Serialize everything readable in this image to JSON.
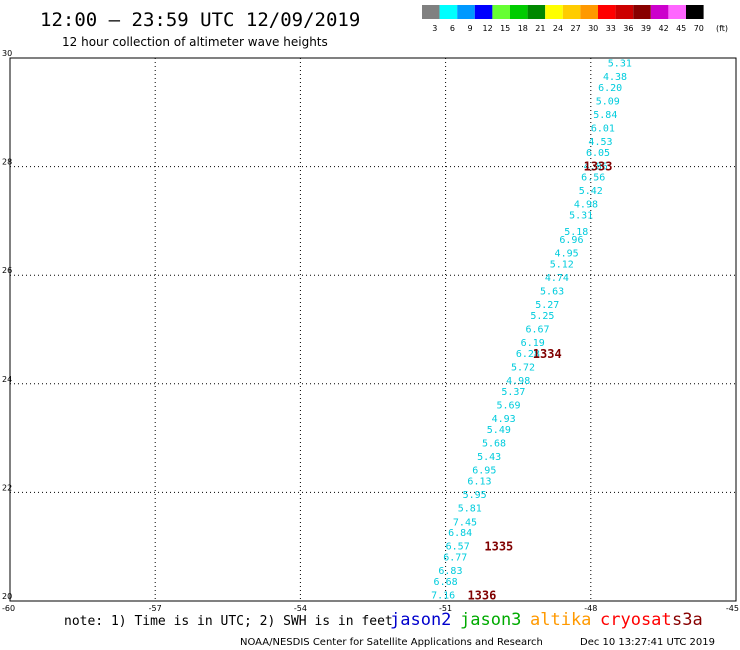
{
  "header": {
    "title": "12:00 – 23:59 UTC 12/09/2019",
    "subtitle": "12 hour collection of altimeter wave heights"
  },
  "scale": {
    "unit": "(ft)",
    "bins": [
      {
        "label": "3",
        "color": "#808080"
      },
      {
        "label": "6",
        "color": "#00ffff"
      },
      {
        "label": "9",
        "color": "#0099ff"
      },
      {
        "label": "12",
        "color": "#0000ff"
      },
      {
        "label": "15",
        "color": "#66ff33"
      },
      {
        "label": "18",
        "color": "#00cc00"
      },
      {
        "label": "21",
        "color": "#008800"
      },
      {
        "label": "24",
        "color": "#ffff00"
      },
      {
        "label": "27",
        "color": "#ffcc00"
      },
      {
        "label": "30",
        "color": "#ff9900"
      },
      {
        "label": "33",
        "color": "#ff0000"
      },
      {
        "label": "36",
        "color": "#cc0000"
      },
      {
        "label": "39",
        "color": "#880000"
      },
      {
        "label": "42",
        "color": "#cc00cc"
      },
      {
        "label": "45",
        "color": "#ff66ff"
      },
      {
        "label": "70",
        "color": "#000000"
      }
    ]
  },
  "chart_data": {
    "type": "scatter",
    "title": "12:00 – 23:59 UTC 12/09/2019",
    "subtitle": "12 hour collection of altimeter wave heights",
    "xlim": [
      -60,
      -45
    ],
    "ylim": [
      20,
      30
    ],
    "x_ticks": [
      "-60",
      "-57",
      "-54",
      "-51",
      "-48",
      "-45"
    ],
    "y_ticks": [
      "20",
      "22",
      "24",
      "26",
      "28",
      "30"
    ],
    "grid": true,
    "wave_color": "#00ccdd",
    "pass_color": "#800000",
    "points": [
      {
        "lon": -47.4,
        "lat": 29.9,
        "v": "5.31"
      },
      {
        "lon": -47.5,
        "lat": 29.65,
        "v": "4.38"
      },
      {
        "lon": -47.6,
        "lat": 29.45,
        "v": "6.20"
      },
      {
        "lon": -47.65,
        "lat": 29.2,
        "v": "5.09"
      },
      {
        "lon": -47.7,
        "lat": 28.95,
        "v": "5.84"
      },
      {
        "lon": -47.75,
        "lat": 28.7,
        "v": "6.01"
      },
      {
        "lon": -47.8,
        "lat": 28.45,
        "v": "4.53"
      },
      {
        "lon": -47.85,
        "lat": 28.25,
        "v": "6.05"
      },
      {
        "lon": -47.9,
        "lat": 28.0,
        "v": "4.86"
      },
      {
        "lon": -47.95,
        "lat": 27.8,
        "v": "6.56"
      },
      {
        "lon": -48.0,
        "lat": 27.55,
        "v": "5.42"
      },
      {
        "lon": -48.1,
        "lat": 27.3,
        "v": "4.98"
      },
      {
        "lon": -48.2,
        "lat": 27.1,
        "v": "5.31"
      },
      {
        "lon": -48.3,
        "lat": 26.8,
        "v": "5.18"
      },
      {
        "lon": -48.4,
        "lat": 26.65,
        "v": "6.96"
      },
      {
        "lon": -48.5,
        "lat": 26.4,
        "v": "4.95"
      },
      {
        "lon": -48.6,
        "lat": 26.2,
        "v": "5.12"
      },
      {
        "lon": -48.7,
        "lat": 25.95,
        "v": "4.74"
      },
      {
        "lon": -48.8,
        "lat": 25.7,
        "v": "5.63"
      },
      {
        "lon": -48.9,
        "lat": 25.45,
        "v": "5.27"
      },
      {
        "lon": -49.0,
        "lat": 25.25,
        "v": "5.25"
      },
      {
        "lon": -49.1,
        "lat": 25.0,
        "v": "6.67"
      },
      {
        "lon": -49.2,
        "lat": 24.75,
        "v": "6.19"
      },
      {
        "lon": -49.3,
        "lat": 24.55,
        "v": "6.28"
      },
      {
        "lon": -49.4,
        "lat": 24.3,
        "v": "5.72"
      },
      {
        "lon": -49.5,
        "lat": 24.05,
        "v": "4.98"
      },
      {
        "lon": -49.6,
        "lat": 23.85,
        "v": "5.37"
      },
      {
        "lon": -49.7,
        "lat": 23.6,
        "v": "5.69"
      },
      {
        "lon": -49.8,
        "lat": 23.35,
        "v": "4.93"
      },
      {
        "lon": -49.9,
        "lat": 23.15,
        "v": "5.49"
      },
      {
        "lon": -50.0,
        "lat": 22.9,
        "v": "5.68"
      },
      {
        "lon": -50.1,
        "lat": 22.65,
        "v": "5.43"
      },
      {
        "lon": -50.2,
        "lat": 22.4,
        "v": "6.95"
      },
      {
        "lon": -50.3,
        "lat": 22.2,
        "v": "6.13"
      },
      {
        "lon": -50.4,
        "lat": 21.95,
        "v": "5.95"
      },
      {
        "lon": -50.5,
        "lat": 21.7,
        "v": "5.81"
      },
      {
        "lon": -50.6,
        "lat": 21.45,
        "v": "7.45"
      },
      {
        "lon": -50.7,
        "lat": 21.25,
        "v": "6.84"
      },
      {
        "lon": -50.75,
        "lat": 21.0,
        "v": "6.57"
      },
      {
        "lon": -50.8,
        "lat": 20.8,
        "v": "6.77"
      },
      {
        "lon": -50.9,
        "lat": 20.55,
        "v": "6.83"
      },
      {
        "lon": -51.0,
        "lat": 20.35,
        "v": "6.68"
      },
      {
        "lon": -51.05,
        "lat": 20.1,
        "v": "7.16"
      }
    ],
    "passes": [
      {
        "lon": -47.85,
        "lat": 28.0,
        "label": "1333"
      },
      {
        "lon": -48.9,
        "lat": 24.55,
        "label": "1334"
      },
      {
        "lon": -49.9,
        "lat": 21.0,
        "label": "1335"
      },
      {
        "lon": -50.25,
        "lat": 20.1,
        "label": "1336"
      }
    ]
  },
  "footer": {
    "note": "note: 1) Time is in UTC; 2) SWH is in feet",
    "satellites": [
      {
        "name": "jason2",
        "color": "#0000cc"
      },
      {
        "name": "jason3",
        "color": "#00aa00"
      },
      {
        "name": "altika",
        "color": "#ff9900"
      },
      {
        "name": "cryosat",
        "color": "#ff0000"
      },
      {
        "name": "s3a",
        "color": "#880000"
      }
    ],
    "credit": "NOAA/NESDIS Center for Satellite Applications and Research",
    "timestamp": "Dec 10 13:27:41 UTC 2019"
  }
}
